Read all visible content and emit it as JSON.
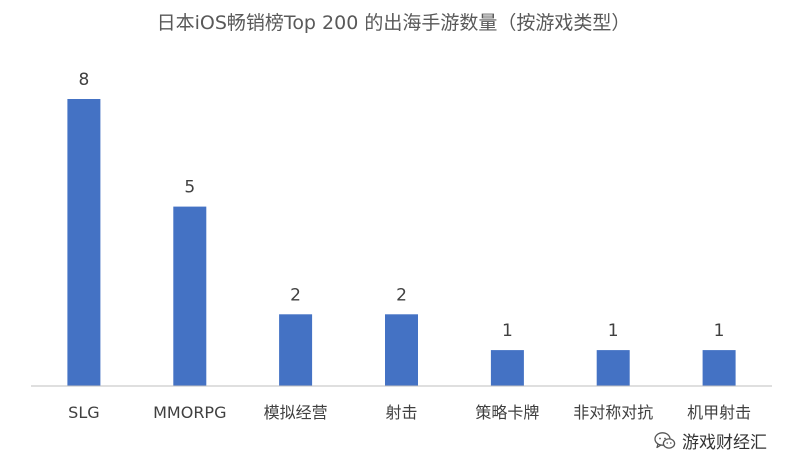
{
  "chart_data": {
    "type": "bar",
    "title": "日本iOS畅销榜Top 200 的出海手游数量（按游戏类型）",
    "categories": [
      "SLG",
      "MMORPG",
      "模拟经营",
      "射击",
      "策略卡牌",
      "非对称对抗",
      "机甲射击"
    ],
    "values": [
      8,
      5,
      2,
      2,
      1,
      1,
      1
    ],
    "xlabel": "",
    "ylabel": "",
    "ylim": [
      0,
      8
    ],
    "grid": false,
    "legend": "none",
    "data_labels": true,
    "bar_color": "#4472c4"
  },
  "watermark": {
    "text": "游戏财经汇",
    "icon": "wechat-icon"
  }
}
